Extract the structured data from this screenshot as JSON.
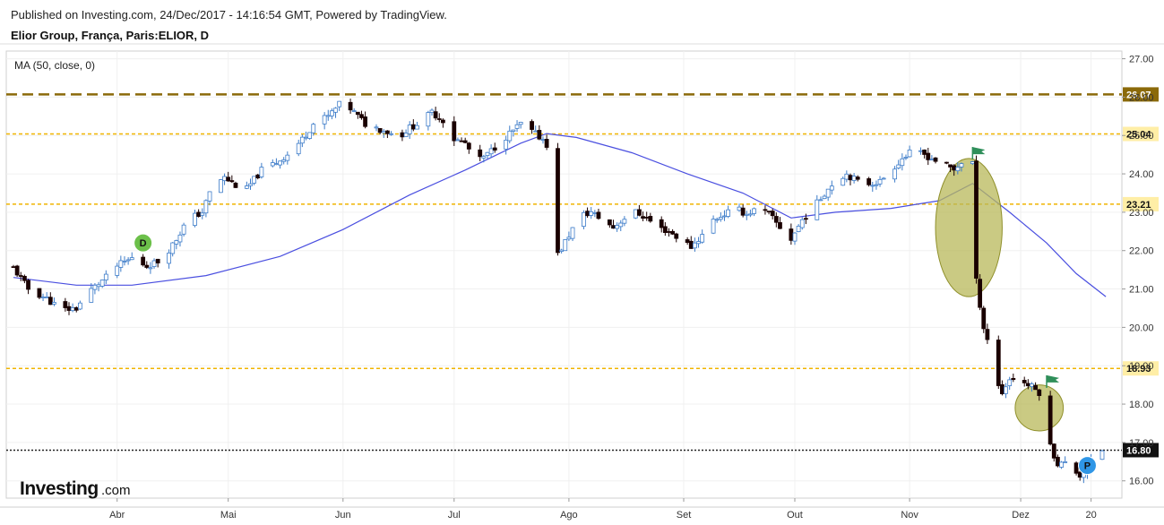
{
  "header": {
    "published": "Published on Investing.com, 24/Dec/2017 - 14:16:54 GMT, Powered by TradingView.",
    "symbol": "Elior Group, França, Paris:ELIOR, D"
  },
  "indicator_label": "MA (50, close, 0)",
  "logo": {
    "brand": "Investing",
    "suffix": ".com"
  },
  "chart_data": {
    "type": "candlestick",
    "ylim": [
      15.55,
      27.2
    ],
    "y_ticks": [
      "16.00",
      "17.00",
      "18.00",
      "19.00",
      "20.00",
      "21.00",
      "22.00",
      "23.00",
      "24.00",
      "25.00",
      "26.00",
      "27.00"
    ],
    "y_tick_values": [
      16,
      17,
      18,
      19,
      20,
      21,
      22,
      23,
      24,
      25,
      26,
      27
    ],
    "x_months": [
      {
        "label": "Abr",
        "day": 21
      },
      {
        "label": "Mai",
        "day": 51
      },
      {
        "label": "Jun",
        "day": 82
      },
      {
        "label": "Jul",
        "day": 112
      },
      {
        "label": "Ago",
        "day": 143
      },
      {
        "label": "Set",
        "day": 174
      },
      {
        "label": "Out",
        "day": 204
      },
      {
        "label": "Nov",
        "day": 235
      },
      {
        "label": "Dez",
        "day": 265
      },
      {
        "label": "20",
        "day": 284
      }
    ],
    "x_range_days": [
      -7,
      287
    ],
    "trend": {
      "start_day": -7,
      "end_day": 288
    },
    "price_path": [
      [
        -7,
        21.55
      ],
      [
        -3,
        21.0
      ],
      [
        2,
        20.75
      ],
      [
        6,
        20.45
      ],
      [
        10,
        20.5
      ],
      [
        13,
        20.9
      ],
      [
        18,
        21.3
      ],
      [
        21,
        21.6
      ],
      [
        25,
        21.8
      ],
      [
        29,
        21.6
      ],
      [
        33,
        21.75
      ],
      [
        37,
        22.3
      ],
      [
        40,
        22.8
      ],
      [
        44,
        23.0
      ],
      [
        47,
        23.75
      ],
      [
        50,
        23.9
      ],
      [
        53,
        23.7
      ],
      [
        56,
        23.6
      ],
      [
        60,
        24.1
      ],
      [
        64,
        24.3
      ],
      [
        67,
        24.5
      ],
      [
        71,
        24.9
      ],
      [
        74,
        25.3
      ],
      [
        78,
        25.5
      ],
      [
        82,
        25.9
      ],
      [
        85,
        25.6
      ],
      [
        88,
        25.3
      ],
      [
        91,
        25.2
      ],
      [
        94,
        25.1
      ],
      [
        97,
        24.95
      ],
      [
        100,
        25.2
      ],
      [
        103,
        25.35
      ],
      [
        106,
        25.6
      ],
      [
        109,
        25.4
      ],
      [
        112,
        24.9
      ],
      [
        115,
        24.8
      ],
      [
        118,
        24.3
      ],
      [
        121,
        24.5
      ],
      [
        124,
        24.8
      ],
      [
        127,
        25.05
      ],
      [
        130,
        25.3
      ],
      [
        133,
        25.1
      ],
      [
        136,
        24.9
      ],
      [
        139,
        24.5
      ],
      [
        140,
        21.9
      ],
      [
        143,
        22.4
      ],
      [
        146,
        22.9
      ],
      [
        149,
        23.0
      ],
      [
        152,
        22.8
      ],
      [
        155,
        22.6
      ],
      [
        158,
        22.85
      ],
      [
        161,
        23.0
      ],
      [
        164,
        22.85
      ],
      [
        167,
        22.6
      ],
      [
        170,
        22.5
      ],
      [
        173,
        22.3
      ],
      [
        176,
        22.1
      ],
      [
        179,
        22.4
      ],
      [
        182,
        22.8
      ],
      [
        185,
        22.95
      ],
      [
        188,
        23.1
      ],
      [
        191,
        22.95
      ],
      [
        194,
        23.1
      ],
      [
        197,
        22.95
      ],
      [
        200,
        22.6
      ],
      [
        203,
        22.3
      ],
      [
        206,
        22.8
      ],
      [
        209,
        23.1
      ],
      [
        212,
        23.5
      ],
      [
        215,
        23.85
      ],
      [
        218,
        24.0
      ],
      [
        221,
        23.8
      ],
      [
        224,
        23.75
      ],
      [
        227,
        23.8
      ],
      [
        230,
        24.1
      ],
      [
        233,
        24.4
      ],
      [
        236,
        24.6
      ],
      [
        239,
        24.5
      ],
      [
        242,
        24.35
      ],
      [
        245,
        24.2
      ],
      [
        247,
        24.1
      ],
      [
        249,
        24.3
      ],
      [
        251,
        24.45
      ],
      [
        252,
        24.3
      ],
      [
        253,
        21.2
      ],
      [
        255,
        20.0
      ],
      [
        256,
        19.7
      ],
      [
        258,
        18.65
      ],
      [
        260,
        18.3
      ],
      [
        262,
        18.65
      ],
      [
        264,
        18.7
      ],
      [
        266,
        18.55
      ],
      [
        268,
        18.45
      ],
      [
        270,
        18.3
      ],
      [
        272,
        17.5
      ],
      [
        273,
        16.9
      ],
      [
        275,
        16.45
      ],
      [
        277,
        16.45
      ],
      [
        279,
        16.3
      ],
      [
        281,
        16.15
      ],
      [
        283,
        16.35
      ],
      [
        285,
        16.65
      ],
      [
        287,
        16.8
      ]
    ],
    "ma50": {
      "name": "MA (50, close, 0)",
      "points": [
        [
          -7,
          21.3
        ],
        [
          10,
          21.1
        ],
        [
          25,
          21.1
        ],
        [
          45,
          21.35
        ],
        [
          65,
          21.85
        ],
        [
          82,
          22.55
        ],
        [
          100,
          23.45
        ],
        [
          115,
          24.1
        ],
        [
          130,
          24.8
        ],
        [
          137,
          25.05
        ],
        [
          145,
          24.95
        ],
        [
          160,
          24.55
        ],
        [
          175,
          24.0
        ],
        [
          190,
          23.5
        ],
        [
          203,
          22.85
        ],
        [
          215,
          23.0
        ],
        [
          230,
          23.1
        ],
        [
          243,
          23.3
        ],
        [
          252,
          23.75
        ],
        [
          262,
          23.0
        ],
        [
          272,
          22.2
        ],
        [
          280,
          21.4
        ],
        [
          288,
          20.8
        ]
      ]
    },
    "horizontal_levels": [
      {
        "label": "26.07",
        "value": 26.07,
        "style": "dashed",
        "color": "#8b6a0a",
        "label_bg": "#8b6a0a",
        "label_color": "#ffffff"
      },
      {
        "label": "25.04",
        "value": 25.04,
        "style": "dotted",
        "color": "#f0b400",
        "label_bg": "#ffeea6",
        "label_color": "#111111"
      },
      {
        "label": "23.21",
        "value": 23.21,
        "style": "dotted",
        "color": "#f0b400",
        "label_bg": "#ffeea6",
        "label_color": "#111111"
      },
      {
        "label": "18.93",
        "value": 18.93,
        "style": "dotted",
        "color": "#f0b400",
        "label_bg": "#ffeea6",
        "label_color": "#111111"
      },
      {
        "label": "16.80",
        "value": 16.8,
        "style": "dotted",
        "color": "#222222",
        "label_bg": "#111111",
        "label_color": "#ffffff"
      }
    ],
    "ellipses": [
      {
        "center_day": 251,
        "center_value": 22.6,
        "rx_days": 9,
        "ry_value": 1.8
      },
      {
        "center_day": 270,
        "center_value": 17.9,
        "rx_days": 6.5,
        "ry_value": 0.6
      }
    ],
    "markers": [
      {
        "label": "D",
        "day": 28,
        "value": 22.2,
        "color": "#6cc04a"
      },
      {
        "label": "P",
        "day": 283,
        "value": 16.4,
        "color": "#2f96e6"
      }
    ],
    "flags": [
      {
        "day": 252,
        "value": 24.7
      },
      {
        "day": 272,
        "value": 18.75
      }
    ],
    "colors": {
      "up_body": "#ffffff",
      "up_border": "#3d7cc9",
      "down_body": "#1a0000",
      "down_border": "#1a0000",
      "ma": "#4a4fe0",
      "ellipse_fill": "#b8b85a",
      "ellipse_stroke": "#8f8f2a",
      "flag": "#2f8f5a"
    }
  }
}
